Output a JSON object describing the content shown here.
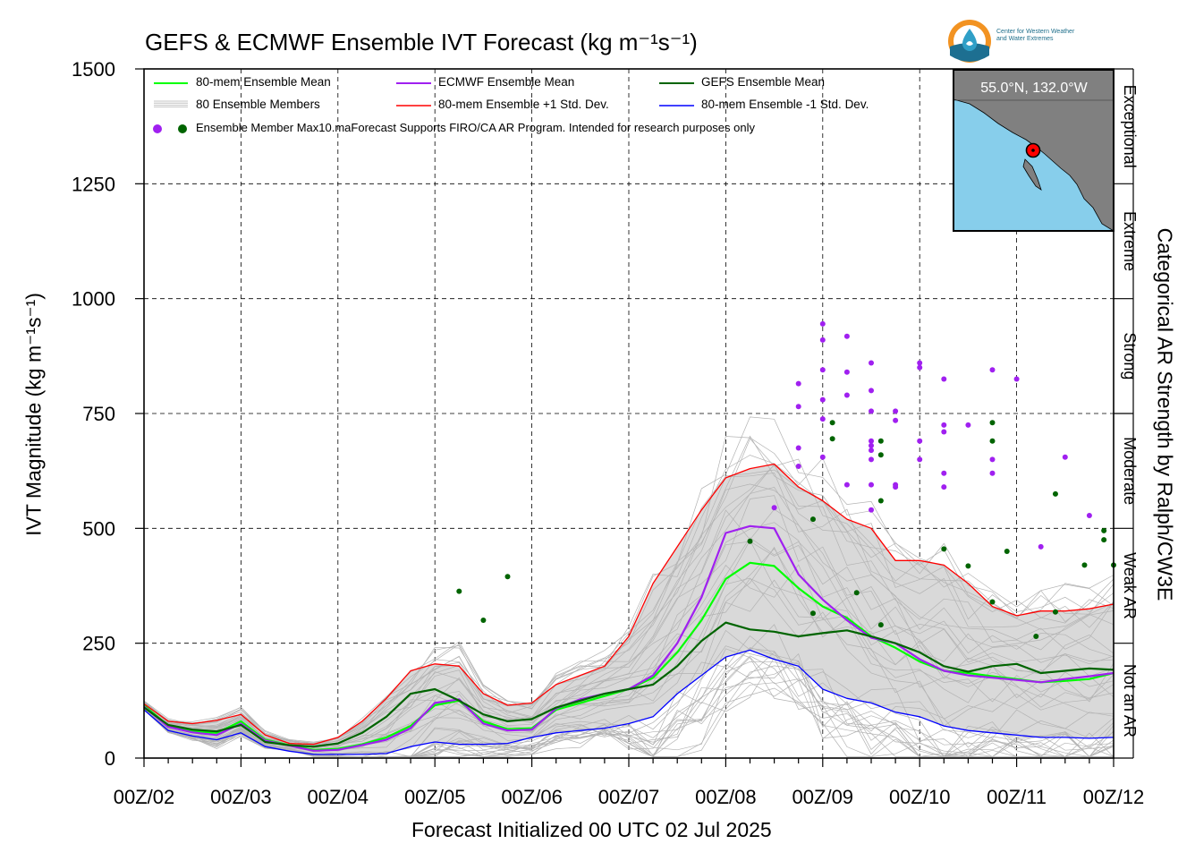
{
  "chart_data": {
    "type": "line",
    "title": "GEFS & ECMWF Ensemble IVT Forecast (kg m⁻¹s⁻¹)",
    "xlabel": "Forecast Initialized 00 UTC 02 Jul 2025",
    "ylabel": "IVT Magnitude (kg m⁻¹s⁻¹)",
    "right_label": "Categorical AR Strength by Ralph/CW3E",
    "x_unit": "days since 00Z/02",
    "xlim": [
      0,
      10
    ],
    "ylim": [
      0,
      1500
    ],
    "x_ticks": [
      "00Z/02",
      "00Z/03",
      "00Z/04",
      "00Z/05",
      "00Z/06",
      "00Z/07",
      "00Z/08",
      "00Z/09",
      "00Z/10",
      "00Z/11",
      "00Z/12"
    ],
    "y_ticks": [
      "0",
      "250",
      "500",
      "750",
      "1000",
      "1250",
      "1500"
    ],
    "grid": true,
    "categories_right": [
      {
        "label": "Not an AR",
        "from": 0,
        "to": 250
      },
      {
        "label": "Weak AR",
        "from": 250,
        "to": 500
      },
      {
        "label": "Moderate",
        "from": 500,
        "to": 750
      },
      {
        "label": "Strong",
        "from": 750,
        "to": 1000
      },
      {
        "label": "Extreme",
        "from": 1000,
        "to": 1250
      },
      {
        "label": "Exceptional",
        "from": 1250,
        "to": 1500
      }
    ],
    "x": [
      0,
      0.25,
      0.5,
      0.75,
      1,
      1.25,
      1.5,
      1.75,
      2,
      2.25,
      2.5,
      2.75,
      3,
      3.25,
      3.5,
      3.75,
      4,
      4.25,
      4.5,
      4.75,
      5,
      5.25,
      5.5,
      5.75,
      6,
      6.25,
      6.5,
      6.75,
      7,
      7.25,
      7.5,
      7.75,
      8,
      8.25,
      8.5,
      8.75,
      9,
      9.25,
      9.5,
      9.75,
      10
    ],
    "series": [
      {
        "name": "80-mem Ensemble Mean",
        "color": "#00ff00",
        "values": [
          115,
          70,
          58,
          55,
          80,
          40,
          28,
          18,
          20,
          30,
          45,
          70,
          115,
          125,
          80,
          63,
          65,
          105,
          120,
          135,
          150,
          175,
          230,
          300,
          390,
          425,
          418,
          370,
          330,
          305,
          265,
          240,
          210,
          190,
          185,
          178,
          172,
          165,
          168,
          172,
          185
        ]
      },
      {
        "name": "ECMWF Ensemble Mean",
        "color": "#a020f0",
        "values": [
          112,
          68,
          56,
          50,
          75,
          38,
          27,
          16,
          18,
          28,
          40,
          65,
          120,
          128,
          75,
          60,
          62,
          108,
          128,
          140,
          150,
          180,
          250,
          350,
          490,
          505,
          500,
          400,
          345,
          300,
          262,
          250,
          215,
          190,
          180,
          175,
          170,
          165,
          172,
          178,
          185
        ]
      },
      {
        "name": "GEFS Ensemble Mean",
        "color": "#006400",
        "values": [
          110,
          72,
          62,
          58,
          72,
          35,
          28,
          25,
          32,
          55,
          90,
          140,
          150,
          125,
          95,
          80,
          85,
          110,
          125,
          140,
          150,
          160,
          200,
          255,
          295,
          280,
          275,
          265,
          272,
          278,
          265,
          250,
          230,
          200,
          188,
          200,
          205,
          185,
          190,
          195,
          192
        ]
      },
      {
        "name": "80-mem Ensemble +1 Std. Dev.",
        "color": "#ff0000",
        "values": [
          118,
          80,
          75,
          82,
          95,
          50,
          32,
          30,
          45,
          80,
          130,
          190,
          205,
          200,
          140,
          115,
          120,
          160,
          180,
          200,
          265,
          380,
          460,
          540,
          610,
          630,
          640,
          590,
          560,
          520,
          500,
          430,
          430,
          420,
          380,
          330,
          310,
          320,
          320,
          325,
          335
        ]
      },
      {
        "name": "80-mem Ensemble -1 Std. Dev.",
        "color": "#0000ff",
        "values": [
          105,
          60,
          48,
          40,
          55,
          25,
          15,
          8,
          8,
          8,
          10,
          25,
          35,
          30,
          30,
          32,
          45,
          55,
          60,
          65,
          75,
          90,
          140,
          180,
          220,
          235,
          215,
          200,
          150,
          130,
          120,
          100,
          90,
          70,
          60,
          55,
          50,
          45,
          45,
          43,
          45
        ]
      }
    ],
    "members_label": "80 Ensemble Members",
    "member_max_label": "Ensemble Member Max",
    "member_max_ecmwf": [
      [
        7.0,
        945
      ],
      [
        7.0,
        910
      ],
      [
        7.25,
        918
      ],
      [
        7.5,
        860
      ],
      [
        7.0,
        845
      ],
      [
        7.25,
        840
      ],
      [
        7.25,
        790
      ],
      [
        7.5,
        800
      ],
      [
        7.0,
        780
      ],
      [
        7.5,
        755
      ],
      [
        7.75,
        755
      ],
      [
        7.0,
        738
      ],
      [
        7.75,
        735
      ],
      [
        6.75,
        815
      ],
      [
        6.75,
        765
      ],
      [
        6.75,
        675
      ],
      [
        6.75,
        635
      ],
      [
        7.0,
        655
      ],
      [
        7.5,
        690
      ],
      [
        7.5,
        680
      ],
      [
        7.5,
        670
      ],
      [
        7.5,
        650
      ],
      [
        7.25,
        595
      ],
      [
        7.5,
        595
      ],
      [
        7.75,
        595
      ],
      [
        7.5,
        540
      ],
      [
        7.75,
        590
      ],
      [
        8.0,
        860
      ],
      [
        8.0,
        850
      ],
      [
        8.25,
        825
      ],
      [
        8.0,
        690
      ],
      [
        8.0,
        650
      ],
      [
        8.25,
        725
      ],
      [
        8.25,
        710
      ],
      [
        8.5,
        725
      ],
      [
        8.75,
        845
      ],
      [
        8.25,
        620
      ],
      [
        8.25,
        590
      ],
      [
        8.75,
        650
      ],
      [
        8.75,
        620
      ],
      [
        9.0,
        825
      ],
      [
        9.5,
        655
      ],
      [
        9.25,
        460
      ],
      [
        9.75,
        528
      ],
      [
        6.5,
        545
      ]
    ],
    "member_max_gefs": [
      [
        3.25,
        363
      ],
      [
        3.5,
        300
      ],
      [
        3.75,
        395
      ],
      [
        6.25,
        472
      ],
      [
        6.9,
        520
      ],
      [
        6.9,
        315
      ],
      [
        7.1,
        730
      ],
      [
        7.1,
        695
      ],
      [
        7.35,
        360
      ],
      [
        7.6,
        690
      ],
      [
        7.6,
        660
      ],
      [
        7.6,
        560
      ],
      [
        7.6,
        290
      ],
      [
        8.25,
        455
      ],
      [
        8.5,
        418
      ],
      [
        8.75,
        730
      ],
      [
        8.75,
        690
      ],
      [
        8.75,
        340
      ],
      [
        8.9,
        450
      ],
      [
        9.2,
        265
      ],
      [
        9.4,
        575
      ],
      [
        9.4,
        318
      ],
      [
        9.7,
        420
      ],
      [
        9.9,
        495
      ],
      [
        9.9,
        475
      ],
      [
        10.0,
        420
      ]
    ],
    "note": "Forecast Supports FIRO/CA AR Program. Intended for research purposes only",
    "inset_label": "55.0°N, 132.0°W",
    "org": "Center for Western Weather and Water Extremes"
  },
  "legend": {
    "mean": "80-mem Ensemble Mean",
    "ecmwf": "ECMWF Ensemble Mean",
    "gefs": "GEFS Ensemble Mean",
    "members": "80 Ensemble Members",
    "plus": "80-mem Ensemble +1 Std. Dev.",
    "minus": "80-mem Ensemble -1 Std. Dev.",
    "max": "Ensemble Member Max10.maForecast Supports FIRO/CA AR Program. Intended for research purposes only"
  },
  "logo": {
    "line1": "Center for Western Weather",
    "line2": "and Water Extremes"
  },
  "colors": {
    "band": "#d9d9d9",
    "member": "#b3b3b3",
    "ocean": "#87ceeb",
    "land": "#808080",
    "marker": "#ff0000"
  }
}
